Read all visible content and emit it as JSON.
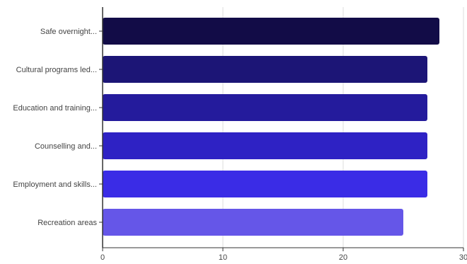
{
  "chart_data": {
    "type": "bar",
    "orientation": "horizontal",
    "categories": [
      "Safe overnight...",
      "Cultural programs led...",
      "Education and training...",
      "Counselling and...",
      "Employment and skills...",
      "Recreation areas"
    ],
    "values": [
      28,
      27,
      27,
      27,
      27,
      25
    ],
    "colors": [
      "#120c47",
      "#1c1576",
      "#241b9c",
      "#2e22c4",
      "#3a2ce6",
      "#6556e8"
    ],
    "xlim": [
      0,
      30
    ],
    "xticks": [
      0,
      10,
      20,
      30
    ],
    "grid": true,
    "title": "",
    "xlabel": "",
    "ylabel": ""
  }
}
